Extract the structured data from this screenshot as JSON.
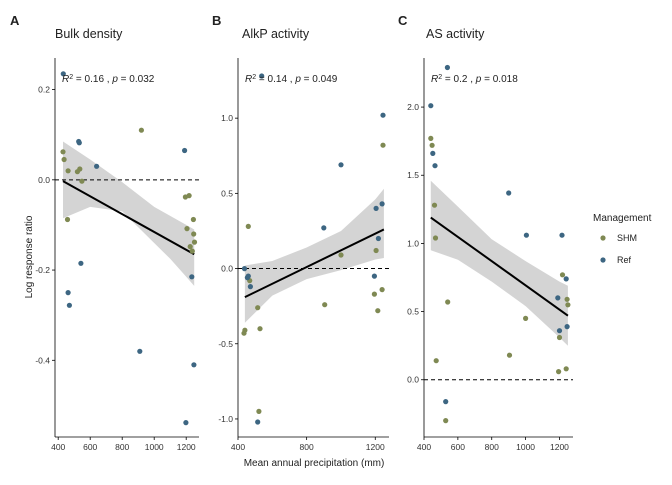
{
  "chart_data": [
    {
      "type": "scatter",
      "letter": "A",
      "title": "Bulk density",
      "stats": {
        "r2": "0.16",
        "p": "0.032"
      },
      "xlim": [
        380,
        1280
      ],
      "ylim": [
        -0.57,
        0.27
      ],
      "xticks": [
        400,
        600,
        800,
        1000,
        1200
      ],
      "yticks": [
        -0.4,
        -0.2,
        0.0,
        0.2
      ],
      "ytick_labels": [
        "-0.4",
        "-0.2",
        "0.0",
        "0.2"
      ],
      "refline": 0,
      "fit": {
        "x": [
          430,
          1250
        ],
        "y": [
          -0.003,
          -0.165
        ]
      },
      "band": {
        "x": [
          430,
          600,
          800,
          1000,
          1100,
          1200,
          1250
        ],
        "lower": [
          -0.085,
          -0.06,
          -0.07,
          -0.14,
          -0.175,
          -0.215,
          -0.235
        ],
        "upper": [
          0.085,
          0.045,
          -0.005,
          -0.06,
          -0.08,
          -0.1,
          -0.11
        ]
      },
      "series": [
        {
          "name": "SHM",
          "points": [
            [
              430,
              0.062
            ],
            [
              437,
              0.045
            ],
            [
              458,
              -0.088
            ],
            [
              462,
              0.02
            ],
            [
              520,
              0.018
            ],
            [
              535,
              0.024
            ],
            [
              548,
              -0.003
            ],
            [
              920,
              0.11
            ],
            [
              1195,
              -0.038
            ],
            [
              1205,
              -0.108
            ],
            [
              1218,
              -0.035
            ],
            [
              1225,
              -0.148
            ],
            [
              1238,
              -0.158
            ],
            [
              1245,
              -0.088
            ],
            [
              1247,
              -0.12
            ],
            [
              1252,
              -0.138
            ]
          ]
        },
        {
          "name": "Ref",
          "points": [
            [
              432,
              0.235
            ],
            [
              462,
              -0.25
            ],
            [
              470,
              -0.278
            ],
            [
              528,
              0.085
            ],
            [
              532,
              0.082
            ],
            [
              542,
              -0.185
            ],
            [
              640,
              0.03
            ],
            [
              910,
              -0.38
            ],
            [
              1190,
              0.065
            ],
            [
              1198,
              -0.538
            ],
            [
              1235,
              -0.215
            ],
            [
              1248,
              -0.41
            ]
          ]
        }
      ]
    },
    {
      "type": "scatter",
      "letter": "B",
      "title": "AlkP activity",
      "stats": {
        "r2": "0.14",
        "p": "0.049"
      },
      "xlim": [
        400,
        1280
      ],
      "ylim": [
        -1.12,
        1.4
      ],
      "xticks": [
        400,
        800,
        1200
      ],
      "yticks": [
        -1.0,
        -0.5,
        0.0,
        0.5,
        1.0
      ],
      "ytick_labels": [
        "-1.0",
        "-0.5",
        "0.0",
        "0.5",
        "1.0"
      ],
      "refline": 0,
      "fit": {
        "x": [
          440,
          1250
        ],
        "y": [
          -0.19,
          0.26
        ]
      },
      "band": {
        "x": [
          440,
          600,
          800,
          1000,
          1200,
          1250
        ],
        "lower": [
          -0.36,
          -0.18,
          -0.07,
          -0.01,
          0.06,
          0.07
        ],
        "upper": [
          0.02,
          0.05,
          0.14,
          0.25,
          0.46,
          0.53
        ]
      },
      "series": [
        {
          "name": "SHM",
          "points": [
            [
              435,
              -0.43
            ],
            [
              440,
              -0.41
            ],
            [
              460,
              0.28
            ],
            [
              468,
              -0.08
            ],
            [
              515,
              -0.26
            ],
            [
              522,
              -0.95
            ],
            [
              528,
              -0.4
            ],
            [
              905,
              -0.24
            ],
            [
              1000,
              0.09
            ],
            [
              1195,
              -0.17
            ],
            [
              1205,
              0.12
            ],
            [
              1215,
              -0.28
            ],
            [
              1240,
              -0.14
            ],
            [
              1245,
              0.82
            ]
          ]
        },
        {
          "name": "Ref",
          "points": [
            [
              438,
              0.0
            ],
            [
              455,
              -0.06
            ],
            [
              460,
              -0.05
            ],
            [
              472,
              -0.12
            ],
            [
              515,
              -1.02
            ],
            [
              538,
              1.28
            ],
            [
              900,
              0.27
            ],
            [
              1000,
              0.69
            ],
            [
              1195,
              -0.05
            ],
            [
              1205,
              0.4
            ],
            [
              1218,
              0.2
            ],
            [
              1240,
              0.43
            ],
            [
              1245,
              1.02
            ]
          ]
        }
      ]
    },
    {
      "type": "scatter",
      "letter": "C",
      "title": "AS activity",
      "stats": {
        "r2": "0.2",
        "p": "0.018"
      },
      "xlim": [
        400,
        1280
      ],
      "ylim": [
        -0.42,
        2.36
      ],
      "xticks": [
        400,
        600,
        800,
        1000,
        1200
      ],
      "yticks": [
        0.0,
        0.5,
        1.0,
        1.5,
        2.0
      ],
      "ytick_labels": [
        "0.0",
        "0.5",
        "1.0",
        "1.5",
        "2.0"
      ],
      "refline": 0,
      "fit": {
        "x": [
          440,
          1250
        ],
        "y": [
          1.19,
          0.47
        ]
      },
      "band": {
        "x": [
          440,
          600,
          800,
          1000,
          1200,
          1250
        ],
        "lower": [
          0.95,
          0.88,
          0.72,
          0.54,
          0.31,
          0.25
        ],
        "upper": [
          1.46,
          1.27,
          1.03,
          0.87,
          0.72,
          0.69
        ]
      },
      "series": [
        {
          "name": "SHM",
          "points": [
            [
              440,
              1.77
            ],
            [
              448,
              1.72
            ],
            [
              462,
              1.28
            ],
            [
              468,
              1.04
            ],
            [
              472,
              0.14
            ],
            [
              528,
              -0.3
            ],
            [
              540,
              0.57
            ],
            [
              905,
              0.18
            ],
            [
              1000,
              0.45
            ],
            [
              1195,
              0.06
            ],
            [
              1200,
              0.31
            ],
            [
              1218,
              0.77
            ],
            [
              1240,
              0.08
            ],
            [
              1245,
              0.59
            ],
            [
              1250,
              0.55
            ]
          ]
        },
        {
          "name": "Ref",
          "points": [
            [
              440,
              2.01
            ],
            [
              452,
              1.66
            ],
            [
              465,
              1.57
            ],
            [
              528,
              -0.16
            ],
            [
              538,
              2.29
            ],
            [
              900,
              1.37
            ],
            [
              1005,
              1.06
            ],
            [
              1190,
              0.6
            ],
            [
              1200,
              0.36
            ],
            [
              1215,
              1.06
            ],
            [
              1240,
              0.74
            ],
            [
              1245,
              0.39
            ]
          ]
        }
      ]
    }
  ],
  "shared": {
    "ylabel": "Log response ratio",
    "xlabel": "Mean annual precipitation (mm)"
  },
  "legend": {
    "title": "Management",
    "items": [
      {
        "label": "SHM",
        "color": "#7f8953"
      },
      {
        "label": "Ref",
        "color": "#3d6682"
      }
    ]
  },
  "colors": {
    "SHM": "#7f8953",
    "Ref": "#3d6682",
    "band": "#d4d4d4",
    "fit": "#000000",
    "axis": "#000000"
  }
}
